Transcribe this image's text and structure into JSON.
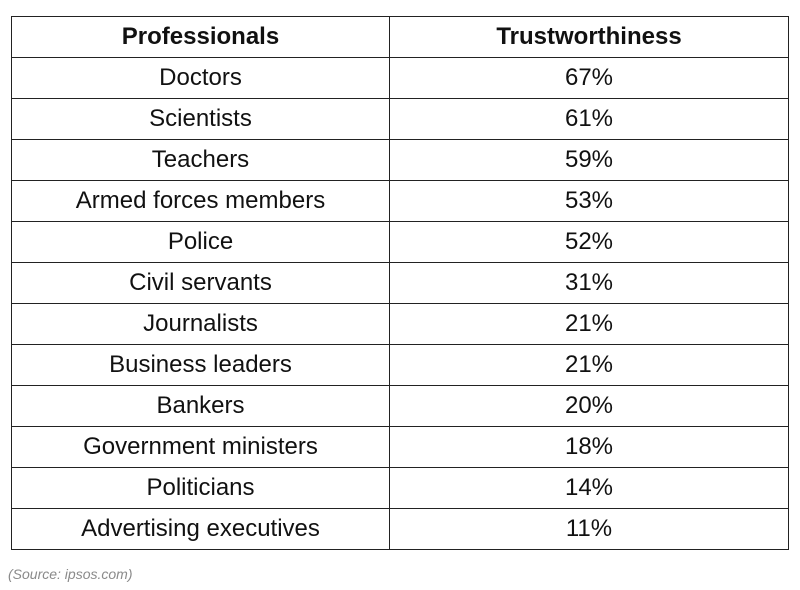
{
  "chart_data": {
    "type": "table",
    "columns": [
      "Professionals",
      "Trustworthiness"
    ],
    "rows": [
      {
        "label": "Doctors",
        "value": "67%"
      },
      {
        "label": "Scientists",
        "value": "61%"
      },
      {
        "label": "Teachers",
        "value": "59%"
      },
      {
        "label": "Armed forces members",
        "value": "53%"
      },
      {
        "label": "Police",
        "value": "52%"
      },
      {
        "label": "Civil servants",
        "value": "31%"
      },
      {
        "label": "Journalists",
        "value": "21%"
      },
      {
        "label": "Business leaders",
        "value": "21%"
      },
      {
        "label": "Bankers",
        "value": "20%"
      },
      {
        "label": "Government ministers",
        "value": "18%"
      },
      {
        "label": "Politicians",
        "value": "14%"
      },
      {
        "label": "Advertising executives",
        "value": "11%"
      }
    ]
  },
  "source": "(Source: ipsos.com)"
}
